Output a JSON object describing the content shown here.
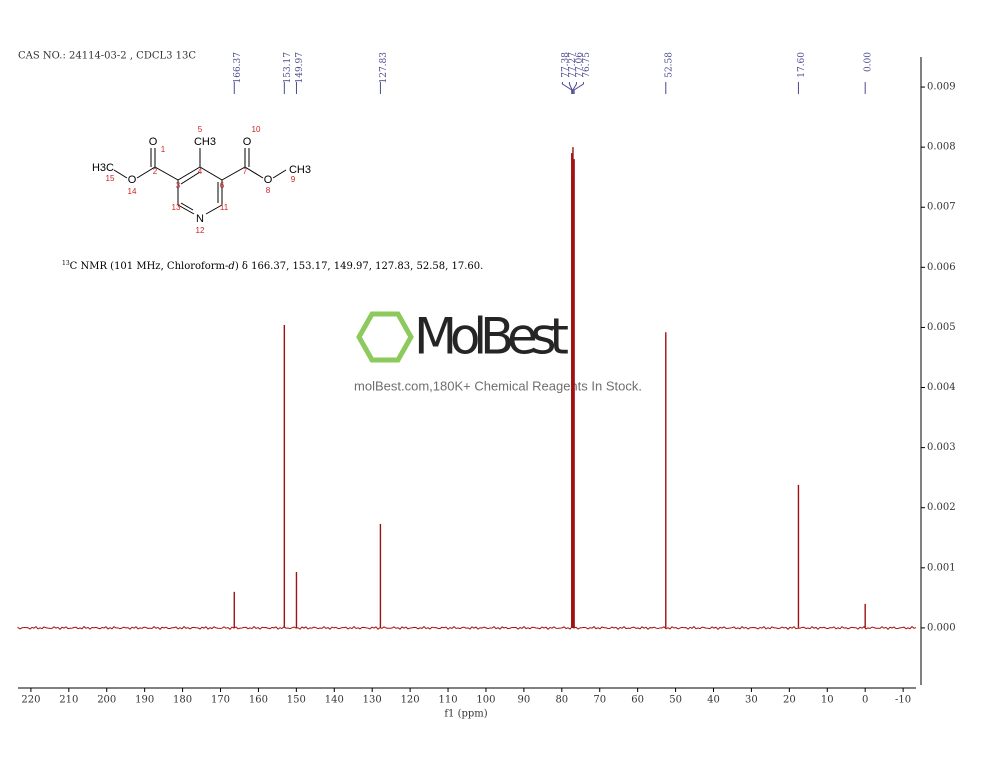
{
  "chart_data": {
    "type": "spectrum",
    "title": "CAS NO.: 24114-03-2 , CDCL3 13C",
    "x_label": "f1 (ppm)",
    "xlim": [
      223.4,
      -13.4
    ],
    "xticks": [
      220,
      210,
      200,
      190,
      180,
      170,
      160,
      150,
      140,
      130,
      120,
      110,
      100,
      90,
      80,
      70,
      60,
      50,
      40,
      30,
      20,
      10,
      0,
      -10
    ],
    "ylim": [
      -0.00095,
      0.0095
    ],
    "yticks": [
      {
        "value": 0,
        "label": "0.000"
      },
      {
        "value": 0.001,
        "label": "0.001"
      },
      {
        "value": 0.002,
        "label": "0.002"
      },
      {
        "value": 0.003,
        "label": "0.003"
      },
      {
        "value": 0.004,
        "label": "0.004"
      },
      {
        "value": 0.005,
        "label": "0.005"
      },
      {
        "value": 0.006,
        "label": "0.006"
      },
      {
        "value": 0.007,
        "label": "0.007"
      },
      {
        "value": 0.008,
        "label": "0.008"
      },
      {
        "value": 0.009,
        "label": "0.009"
      }
    ],
    "color": "#a01010",
    "label_color": "#4a4a90",
    "peaks": {
      "x": [
        166.37,
        153.17,
        149.97,
        127.83,
        77.38,
        77.27,
        77.06,
        76.75,
        52.58,
        17.6,
        0.0
      ],
      "values": [
        0.0006,
        0.00504,
        0.00093,
        0.00173,
        0.0079,
        0.0075,
        0.008,
        0.0078,
        0.00492,
        0.00238,
        0.0004
      ],
      "x_labels": [
        "166.37",
        "153.17",
        "149.97",
        "127.83",
        "77.38",
        "77.27",
        "77.06",
        "76.75",
        "52.58",
        "17.60",
        "0.00"
      ]
    },
    "annotation": [
      "13",
      "C NMR (101 MHz, Chloroform-",
      "d",
      ") δ 166.37, 153.17, 149.97, 127.83, 52.58, 17.60."
    ],
    "structure": {
      "atoms": [
        "O",
        "CH3",
        "O",
        "O",
        "CH3",
        "N",
        "H3C",
        "O"
      ],
      "locants": [
        "1",
        "2",
        "3",
        "4",
        "5",
        "6",
        "7",
        "8",
        "9",
        "10",
        "11",
        "12",
        "13",
        "14",
        "15"
      ]
    },
    "watermark": {
      "logo": "MolBest",
      "text": "molBest.com,180K+ Chemical Reagents In Stock."
    }
  }
}
